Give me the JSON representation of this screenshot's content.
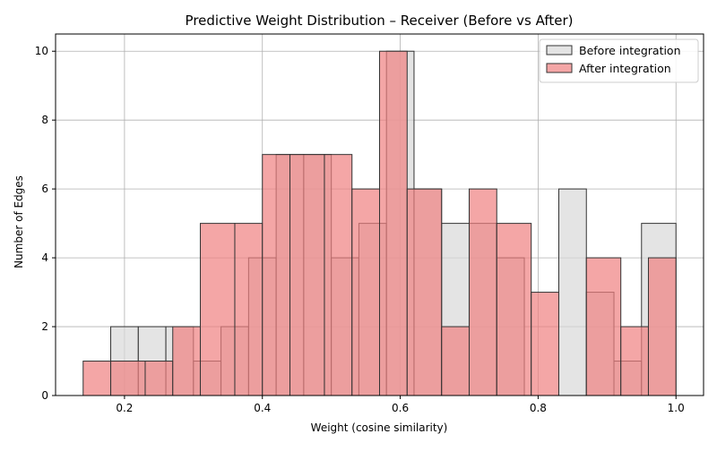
{
  "chart_data": {
    "type": "bar",
    "subtype": "overlaid-histogram",
    "title": "Predictive Weight Distribution – Receiver (Before vs After)",
    "xlabel": "Weight (cosine similarity)",
    "ylabel": "Number of Edges",
    "xlim": [
      0.1,
      1.04
    ],
    "ylim": [
      0,
      10.5
    ],
    "xticks": [
      0.2,
      0.4,
      0.6,
      0.8,
      1.0
    ],
    "xtick_labels": [
      "0.2",
      "0.4",
      "0.6",
      "0.8",
      "1.0"
    ],
    "yticks": [
      0,
      2,
      4,
      6,
      8,
      10
    ],
    "ytick_labels": [
      "0",
      "2",
      "4",
      "6",
      "8",
      "10"
    ],
    "grid": true,
    "legend_position": "top-right",
    "series": [
      {
        "name": "Before integration",
        "color": "#d9d9d9",
        "edge_color": "#333333",
        "bins": [
          {
            "x0": 0.18,
            "x1": 0.22,
            "count": 2
          },
          {
            "x0": 0.22,
            "x1": 0.26,
            "count": 2
          },
          {
            "x0": 0.26,
            "x1": 0.3,
            "count": 2
          },
          {
            "x0": 0.3,
            "x1": 0.34,
            "count": 1
          },
          {
            "x0": 0.34,
            "x1": 0.38,
            "count": 2
          },
          {
            "x0": 0.38,
            "x1": 0.42,
            "count": 4
          },
          {
            "x0": 0.42,
            "x1": 0.46,
            "count": 7
          },
          {
            "x0": 0.46,
            "x1": 0.5,
            "count": 7
          },
          {
            "x0": 0.5,
            "x1": 0.54,
            "count": 4
          },
          {
            "x0": 0.54,
            "x1": 0.58,
            "count": 5
          },
          {
            "x0": 0.58,
            "x1": 0.62,
            "count": 10
          },
          {
            "x0": 0.62,
            "x1": 0.66,
            "count": 6
          },
          {
            "x0": 0.66,
            "x1": 0.7,
            "count": 5
          },
          {
            "x0": 0.7,
            "x1": 0.74,
            "count": 5
          },
          {
            "x0": 0.74,
            "x1": 0.78,
            "count": 4
          },
          {
            "x0": 0.78,
            "x1": 0.83,
            "count": 0
          },
          {
            "x0": 0.83,
            "x1": 0.87,
            "count": 6
          },
          {
            "x0": 0.87,
            "x1": 0.91,
            "count": 3
          },
          {
            "x0": 0.91,
            "x1": 0.95,
            "count": 1
          },
          {
            "x0": 0.95,
            "x1": 1.0,
            "count": 5
          }
        ]
      },
      {
        "name": "After integration",
        "color": "#f08080",
        "edge_color": "#333333",
        "bins": [
          {
            "x0": 0.14,
            "x1": 0.18,
            "count": 1
          },
          {
            "x0": 0.18,
            "x1": 0.23,
            "count": 1
          },
          {
            "x0": 0.23,
            "x1": 0.27,
            "count": 1
          },
          {
            "x0": 0.27,
            "x1": 0.31,
            "count": 2
          },
          {
            "x0": 0.31,
            "x1": 0.36,
            "count": 5
          },
          {
            "x0": 0.36,
            "x1": 0.4,
            "count": 5
          },
          {
            "x0": 0.4,
            "x1": 0.44,
            "count": 7
          },
          {
            "x0": 0.44,
            "x1": 0.49,
            "count": 7
          },
          {
            "x0": 0.49,
            "x1": 0.53,
            "count": 7
          },
          {
            "x0": 0.53,
            "x1": 0.57,
            "count": 6
          },
          {
            "x0": 0.57,
            "x1": 0.61,
            "count": 10
          },
          {
            "x0": 0.61,
            "x1": 0.66,
            "count": 6
          },
          {
            "x0": 0.66,
            "x1": 0.7,
            "count": 2
          },
          {
            "x0": 0.7,
            "x1": 0.74,
            "count": 6
          },
          {
            "x0": 0.74,
            "x1": 0.79,
            "count": 5
          },
          {
            "x0": 0.79,
            "x1": 0.83,
            "count": 3
          },
          {
            "x0": 0.83,
            "x1": 0.87,
            "count": 0
          },
          {
            "x0": 0.87,
            "x1": 0.92,
            "count": 4
          },
          {
            "x0": 0.92,
            "x1": 0.96,
            "count": 2
          },
          {
            "x0": 0.96,
            "x1": 1.0,
            "count": 4
          }
        ]
      }
    ]
  }
}
